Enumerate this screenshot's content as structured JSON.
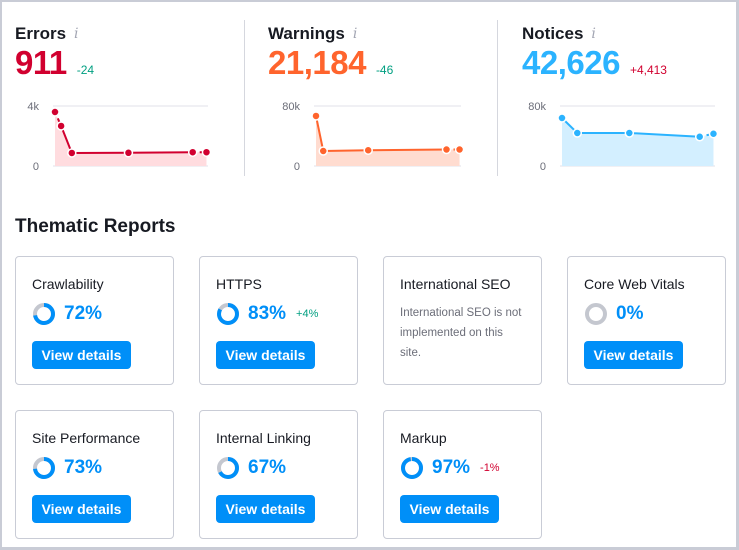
{
  "metrics": [
    {
      "title": "Errors",
      "value": "911",
      "delta": "-24",
      "delta_color": "#009f81",
      "color": "#d1002f",
      "fill": "#ffdcdf",
      "ymax_label": "4k",
      "ymin_label": "0",
      "ymax": 4000,
      "values": [
        3600,
        2670,
        870,
        880,
        920,
        920
      ]
    },
    {
      "title": "Warnings",
      "value": "21,184",
      "delta": "-46",
      "delta_color": "#009f81",
      "color": "#ff642d",
      "fill": "#ffdcd0",
      "ymax_label": "80k",
      "ymin_label": "0",
      "ymax": 80000,
      "values": [
        66700,
        20000,
        21000,
        22000,
        22000
      ]
    },
    {
      "title": "Notices",
      "value": "42,626",
      "delta": "+4,413",
      "delta_color": "#d1002f",
      "color": "#2bb3ff",
      "fill": "#d3efff",
      "ymax_label": "80k",
      "ymin_label": "0",
      "ymax": 80000,
      "values": [
        64000,
        44000,
        44000,
        39000,
        43000
      ]
    }
  ],
  "info_icon": "i",
  "thematic": {
    "title": "Thematic Reports",
    "button_label": "View details",
    "cards": [
      {
        "title": "Crawlability",
        "score": "72%",
        "percent": 72,
        "delta": ""
      },
      {
        "title": "HTTPS",
        "score": "83%",
        "percent": 83,
        "delta": "+4%",
        "delta_color": "#009f81"
      },
      {
        "title": "International SEO",
        "note": "International SEO is not implemented on this site."
      },
      {
        "title": "Core Web Vitals",
        "score": "0%",
        "percent": 0,
        "delta": ""
      },
      {
        "title": "Site Performance",
        "score": "73%",
        "percent": 73,
        "delta": ""
      },
      {
        "title": "Internal Linking",
        "score": "67%",
        "percent": 67,
        "delta": ""
      },
      {
        "title": "Markup",
        "score": "97%",
        "percent": 97,
        "delta": "-1%",
        "delta_color": "#d1002f"
      }
    ]
  },
  "colors": {
    "accent": "#008ff8",
    "ring_track": "#c4c7cf"
  }
}
